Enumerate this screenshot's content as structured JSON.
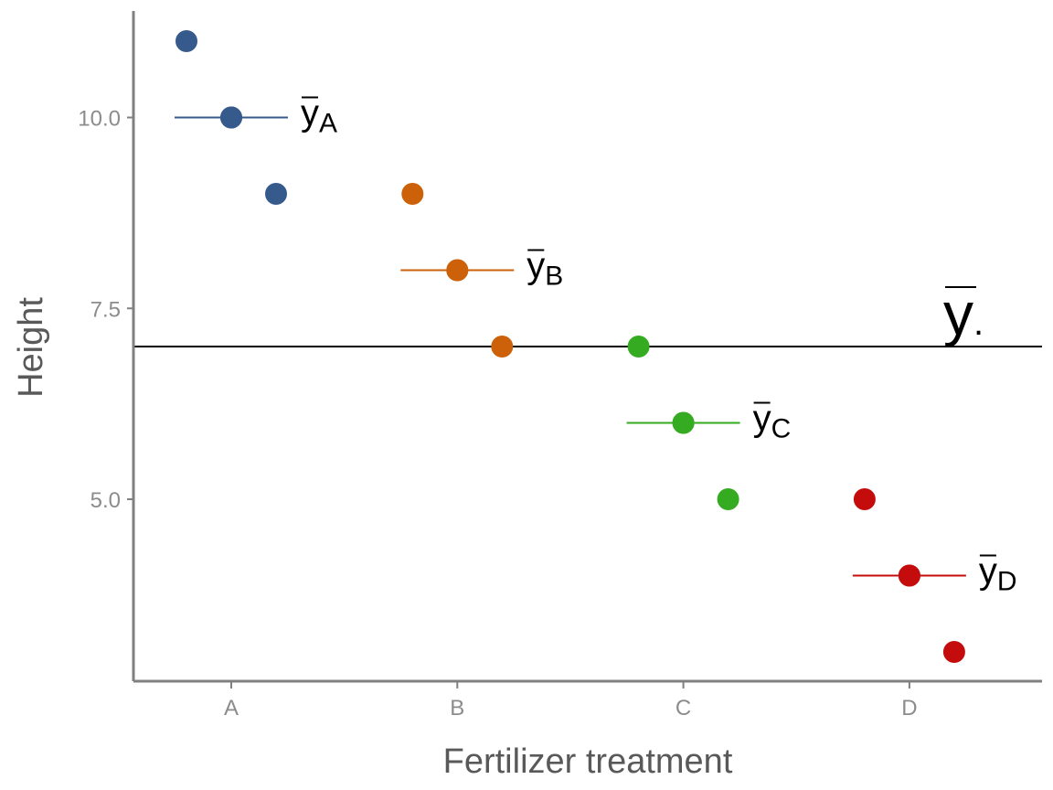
{
  "chart_data": {
    "type": "scatter",
    "xlabel": "Fertilizer treatment",
    "ylabel": "Height",
    "categories": [
      "A",
      "B",
      "C",
      "D"
    ],
    "y_ticks": [
      5.0,
      7.5,
      10.0
    ],
    "y_tick_labels": [
      "5.0",
      "7.5",
      "10.0"
    ],
    "ylim": [
      2.62,
      11.4
    ],
    "grid": false,
    "legend": "none",
    "grand_mean": {
      "value": 7,
      "label": "y",
      "subscript": "."
    },
    "series": [
      {
        "category": "A",
        "color": "#375a8c",
        "points": [
          11,
          10,
          9
        ],
        "mean": 10,
        "mean_label": "y",
        "mean_subscript": "A"
      },
      {
        "category": "B",
        "color": "#cc6109",
        "points": [
          9,
          8,
          7
        ],
        "mean": 8,
        "mean_label": "y",
        "mean_subscript": "B"
      },
      {
        "category": "C",
        "color": "#35ab21",
        "points": [
          7,
          6,
          5
        ],
        "mean": 6,
        "mean_label": "y",
        "mean_subscript": "C"
      },
      {
        "category": "D",
        "color": "#c40c0c",
        "points": [
          5,
          4,
          3
        ],
        "mean": 4,
        "mean_label": "y",
        "mean_subscript": "D"
      }
    ]
  }
}
